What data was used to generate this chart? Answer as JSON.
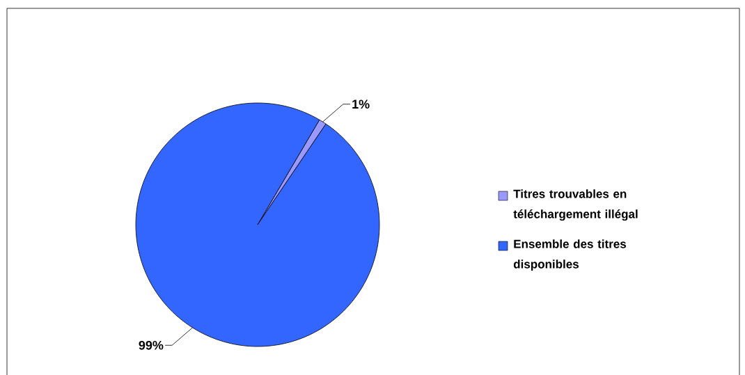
{
  "chart_data": {
    "type": "pie",
    "categories": [
      "Titres trouvables en téléchargement illégal",
      "Ensemble des titres disponibles"
    ],
    "values": [
      1,
      99
    ],
    "colors": [
      "#9999ff",
      "#3366ff"
    ],
    "value_labels": [
      "1%",
      "99%"
    ],
    "legend": "right"
  }
}
